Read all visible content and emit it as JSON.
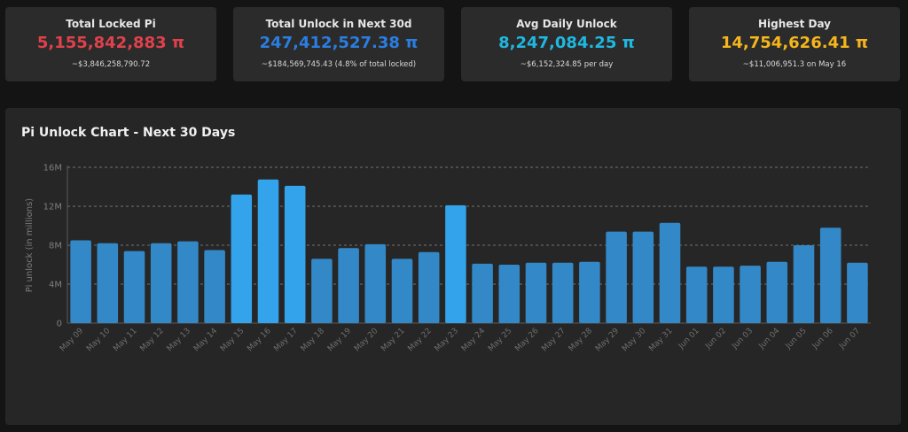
{
  "cards": [
    {
      "title": "Total Locked Pi",
      "value": "5,155,842,883 π",
      "sub": "~$3,846,258,790.72",
      "color": "#e0414b"
    },
    {
      "title": "Total Unlock in Next 30d",
      "value": "247,412,527.38 π",
      "sub": "~$184,569,745.43 (4.8% of total locked)",
      "color": "#2a7de1"
    },
    {
      "title": "Avg Daily Unlock",
      "value": "8,247,084.25 π",
      "sub": "~$6,152,324.85 per day",
      "color": "#1fb8e0"
    },
    {
      "title": "Highest Day",
      "value": "14,754,626.41 π",
      "sub": "~$11,006,951.3 on May 16",
      "color": "#f5b51b"
    }
  ],
  "chart_data": {
    "type": "bar",
    "title": "Pi Unlock Chart - Next 30 Days",
    "ylabel": "Pi unlock (in millions)",
    "xlabel": "",
    "ylim": [
      0,
      16
    ],
    "yticks": [
      0,
      4,
      8,
      12,
      16
    ],
    "ytick_labels": [
      "0",
      "4M",
      "8M",
      "12M",
      "16M"
    ],
    "grid": true,
    "bar_color": "#3389c8",
    "highlight_color": "#33a3ec",
    "categories": [
      "May 09",
      "May 10",
      "May 11",
      "May 12",
      "May 13",
      "May 14",
      "May 15",
      "May 16",
      "May 17",
      "May 18",
      "May 19",
      "May 20",
      "May 21",
      "May 22",
      "May 23",
      "May 24",
      "May 25",
      "May 26",
      "May 27",
      "May 28",
      "May 29",
      "May 30",
      "May 31",
      "Jun 01",
      "Jun 02",
      "Jun 03",
      "Jun 04",
      "Jun 05",
      "Jun 06",
      "Jun 07"
    ],
    "values": [
      8.5,
      8.2,
      7.4,
      8.2,
      8.4,
      7.5,
      13.2,
      14.75,
      14.1,
      6.6,
      7.7,
      8.1,
      6.6,
      7.3,
      12.1,
      6.1,
      6.0,
      6.2,
      6.2,
      6.3,
      9.4,
      9.4,
      10.3,
      5.8,
      5.8,
      5.9,
      6.3,
      8.0,
      9.8,
      6.2
    ]
  }
}
